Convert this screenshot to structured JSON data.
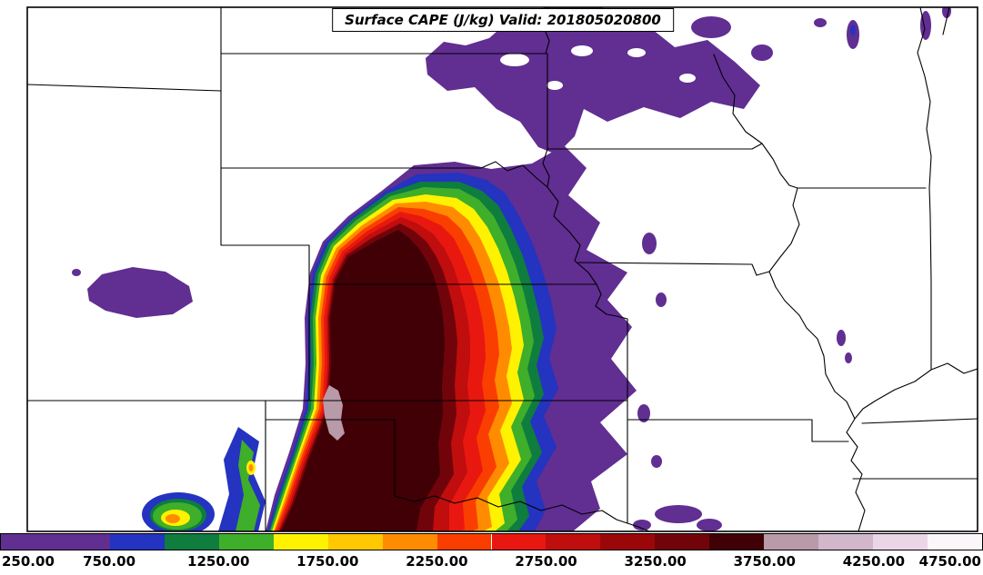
{
  "title": "Surface CAPE (J/kg) Valid: 201805020800",
  "chart_data": {
    "type": "heatmap",
    "variable": "Surface CAPE",
    "units": "J/kg",
    "valid_time": "201805020800",
    "title": "Surface CAPE (J/kg) Valid: 201805020800",
    "legend_position": "bottom",
    "colorbar": {
      "min": 250,
      "max": 4750,
      "ticks": [
        "250.00",
        "750.00",
        "1250.00",
        "1750.00",
        "2250.00",
        "2750.00",
        "3250.00",
        "3750.00",
        "4250.00",
        "4750.00"
      ],
      "tick_values": [
        250,
        750,
        1250,
        1750,
        2250,
        2750,
        3250,
        3750,
        4250,
        4750
      ],
      "segments": [
        {
          "from": 250,
          "to": 750,
          "color": "#612E92"
        },
        {
          "from": 750,
          "to": 1000,
          "color": "#2433C0"
        },
        {
          "from": 1000,
          "to": 1250,
          "color": "#0E7D3E"
        },
        {
          "from": 1250,
          "to": 1500,
          "color": "#3FAE2A"
        },
        {
          "from": 1500,
          "to": 1750,
          "color": "#FFF200"
        },
        {
          "from": 1750,
          "to": 2000,
          "color": "#FFC800"
        },
        {
          "from": 2000,
          "to": 2250,
          "color": "#FF8C00"
        },
        {
          "from": 2250,
          "to": 2500,
          "color": "#FA3E00"
        },
        {
          "from": 2500,
          "to": 2750,
          "color": "#E81810"
        },
        {
          "from": 2750,
          "to": 3000,
          "color": "#C00D0D"
        },
        {
          "from": 3000,
          "to": 3250,
          "color": "#9B0709"
        },
        {
          "from": 3250,
          "to": 3500,
          "color": "#71040A"
        },
        {
          "from": 3500,
          "to": 3750,
          "color": "#400006"
        },
        {
          "from": 3750,
          "to": 4000,
          "color": "#B89AA8"
        },
        {
          "from": 4000,
          "to": 4250,
          "color": "#D2B6CA"
        },
        {
          "from": 4250,
          "to": 4500,
          "color": "#EAD6E6"
        },
        {
          "from": 4500,
          "to": 4750,
          "color": "#FBF6FA"
        }
      ]
    },
    "map_regions": [
      "Large CAPE maximum with core above 3500 J/kg along a sharp north-south gradient over the central/southern High Plains",
      "Small 3750-4000 J/kg pocket (pale gray-pink) embedded in the dark maroon core",
      "Broad graded bands (red-orange-yellow-green-blue-purple) spreading eastward across the plains",
      "Low-CAPE purple band (250-750 J/kg) stretched across the upper Midwest near the top of the map",
      "Scattered small low-CAPE purple patches in the east, far west and bottom-right of the domain",
      "Small multicolor CAPE bullseye near the bottom-left border region"
    ]
  }
}
